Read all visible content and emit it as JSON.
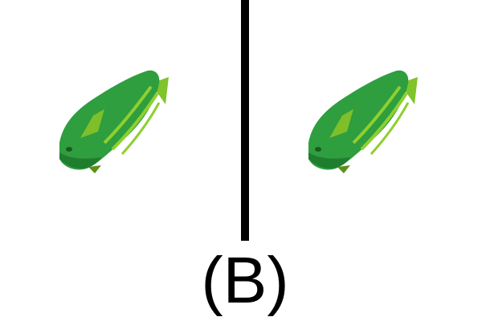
{
  "caption": "(B)",
  "colors": {
    "background": "#ffffff",
    "divider": "#000000",
    "fish_body": "#2e9e3f",
    "fish_body_dark": "#1f7d2e",
    "fish_stripe": "#8fcf2e",
    "fish_patch": "#7fbf2a",
    "fish_eye": "#1b5a24"
  },
  "panels": [
    {
      "name": "left-panel",
      "icon": "green-fish-icon"
    },
    {
      "name": "right-panel",
      "icon": "green-fish-icon"
    }
  ]
}
